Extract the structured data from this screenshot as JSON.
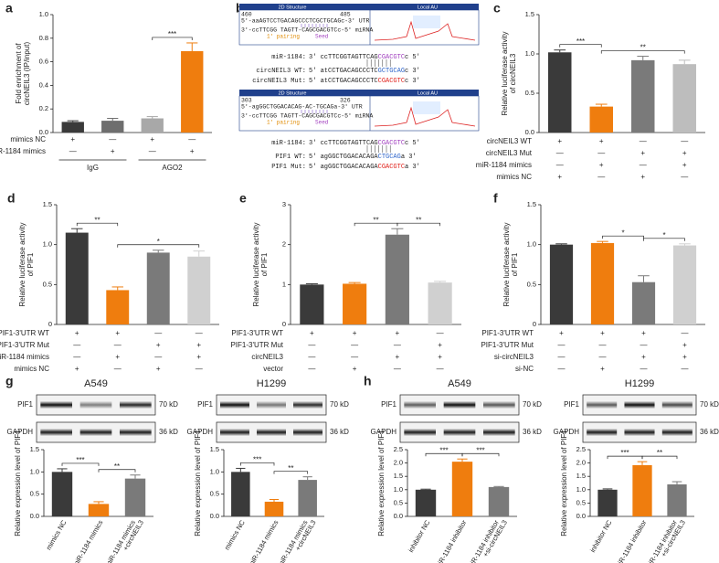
{
  "chart_data": [
    {
      "type": "bar",
      "panel": "a",
      "ylabel": [
        "Fold enrichment of",
        "circNEIL3 (IP/input)"
      ],
      "values": [
        0.09,
        0.1,
        0.12,
        0.69
      ],
      "errors": [
        0.01,
        0.02,
        0.015,
        0.07
      ],
      "colors": [
        "#3a3a3a",
        "#6e6e6e",
        "#a8a8a8",
        "#ef7d0e"
      ],
      "ylim": [
        0,
        1
      ],
      "yticks": [
        {
          "value": 0,
          "label": "0.0"
        },
        0.2,
        0.4,
        0.6,
        0.8,
        {
          "value": 1,
          "label": "1.0"
        }
      ],
      "conditions": [
        {
          "name": "mimics NC",
          "signs": [
            "+",
            "—",
            "+",
            "—"
          ]
        },
        {
          "name": "miR-1184 mimics",
          "signs": [
            "—",
            "+",
            "—",
            "+"
          ]
        }
      ],
      "groups": [
        {
          "name": "IgG",
          "from": 0,
          "to": 1
        },
        {
          "name": "AGO2",
          "from": 2,
          "to": 3
        }
      ],
      "significance": [
        {
          "from": 2,
          "to": 3,
          "label": "***"
        }
      ]
    },
    {
      "type": "bar",
      "panel": "c",
      "ylabel": [
        "Relative luciferase activity",
        "of circNEIL3"
      ],
      "values": [
        1.02,
        0.33,
        0.92,
        0.87
      ],
      "errors": [
        0.03,
        0.03,
        0.05,
        0.05
      ],
      "colors": [
        "#3a3a3a",
        "#ef7d0e",
        "#7a7a7a",
        "#bdbdbd"
      ],
      "ylim": [
        0,
        1.5
      ],
      "yticks": [
        {
          "value": 0,
          "label": "0.0"
        },
        0.5,
        {
          "value": 1,
          "label": "1.0"
        },
        1.5
      ],
      "conditions": [
        {
          "name": "circNEIL3 WT",
          "signs": [
            "+",
            "+",
            "—",
            "—"
          ]
        },
        {
          "name": "circNEIL3 Mut",
          "signs": [
            "—",
            "—",
            "+",
            "+"
          ]
        },
        {
          "name": "miR-1184 mimics",
          "signs": [
            "—",
            "+",
            "—",
            "+"
          ]
        },
        {
          "name": "mimics NC",
          "signs": [
            "+",
            "—",
            "+",
            "—"
          ]
        }
      ],
      "significance": [
        {
          "from": 0,
          "to": 1,
          "label": "***"
        },
        {
          "from": 1,
          "to": 3,
          "label": "**"
        }
      ]
    },
    {
      "type": "bar",
      "panel": "d",
      "ylabel": [
        "Relative luciferase activity",
        "of PIF1"
      ],
      "values": [
        1.15,
        0.43,
        0.9,
        0.85
      ],
      "errors": [
        0.05,
        0.04,
        0.03,
        0.07
      ],
      "colors": [
        "#3a3a3a",
        "#ef7d0e",
        "#7a7a7a",
        "#d0d0d0"
      ],
      "ylim": [
        0,
        1.5
      ],
      "yticks": [
        0,
        0.5,
        {
          "value": 1,
          "label": "1.0"
        },
        1.5
      ],
      "conditions": [
        {
          "name": "PIF1-3'UTR WT",
          "signs": [
            "+",
            "+",
            "—",
            "—"
          ]
        },
        {
          "name": "PIF1-3'UTR Mut",
          "signs": [
            "—",
            "—",
            "+",
            "+"
          ]
        },
        {
          "name": "miR-1184 mimics",
          "signs": [
            "—",
            "+",
            "—",
            "+"
          ]
        },
        {
          "name": "mimics NC",
          "signs": [
            "+",
            "—",
            "+",
            "—"
          ]
        }
      ],
      "significance": [
        {
          "from": 0,
          "to": 1,
          "label": "**"
        },
        {
          "from": 1,
          "to": 3,
          "label": "*"
        }
      ]
    },
    {
      "type": "bar",
      "panel": "e",
      "ylabel": [
        "Relative luciferase activity",
        "of PIF1"
      ],
      "values": [
        1.0,
        1.02,
        2.25,
        1.05
      ],
      "errors": [
        0.02,
        0.03,
        0.15,
        0.03
      ],
      "colors": [
        "#3a3a3a",
        "#ef7d0e",
        "#7a7a7a",
        "#d0d0d0"
      ],
      "ylim": [
        0,
        3
      ],
      "yticks": [
        0,
        1,
        2,
        3
      ],
      "conditions": [
        {
          "name": "PIF1-3'UTR WT",
          "signs": [
            "+",
            "+",
            "+",
            "—"
          ]
        },
        {
          "name": "PIF1-3'UTR Mut",
          "signs": [
            "—",
            "—",
            "—",
            "+"
          ]
        },
        {
          "name": "circNEIL3",
          "signs": [
            "—",
            "—",
            "+",
            "+"
          ]
        },
        {
          "name": "vector",
          "signs": [
            "—",
            "+",
            "—",
            "—"
          ]
        }
      ],
      "significance": [
        {
          "from": 1,
          "to": 2,
          "label": "**"
        },
        {
          "from": 2,
          "to": 3,
          "label": "**"
        }
      ]
    },
    {
      "type": "bar",
      "panel": "f",
      "ylabel": [
        "Relative luciferase activity",
        "of PIF1"
      ],
      "values": [
        1.0,
        1.02,
        0.53,
        0.99
      ],
      "errors": [
        0.01,
        0.02,
        0.08,
        0.02
      ],
      "colors": [
        "#3a3a3a",
        "#ef7d0e",
        "#7a7a7a",
        "#d0d0d0"
      ],
      "ylim": [
        0,
        1.5
      ],
      "yticks": [
        0,
        0.5,
        {
          "value": 1,
          "label": "1.0"
        },
        1.5
      ],
      "conditions": [
        {
          "name": "PIF1-3'UTR WT",
          "signs": [
            "+",
            "+",
            "+",
            "—"
          ]
        },
        {
          "name": "PIF1-3'UTR Mut",
          "signs": [
            "—",
            "—",
            "—",
            "+"
          ]
        },
        {
          "name": "si-circNEIL3",
          "signs": [
            "—",
            "—",
            "+",
            "+"
          ]
        },
        {
          "name": "si-NC",
          "signs": [
            "—",
            "+",
            "—",
            "—"
          ]
        }
      ],
      "significance": [
        {
          "from": 1,
          "to": 2,
          "label": "*"
        },
        {
          "from": 2,
          "to": 3,
          "label": "*"
        }
      ]
    },
    {
      "type": "bar",
      "panel": "g",
      "title": "A549",
      "blot_labels": [
        {
          "protein": "PIF1",
          "size": "70 kD"
        },
        {
          "protein": "GAPDH",
          "size": "36 kD"
        }
      ],
      "ylabel": [
        "Relative expression level of PIF1"
      ],
      "categories": [
        [
          "mimics NC"
        ],
        [
          "miR-1184 mimics"
        ],
        [
          "miR-1184 mimics",
          "+circNEIL3"
        ]
      ],
      "values": [
        1.0,
        0.28,
        0.85
      ],
      "errors": [
        0.07,
        0.05,
        0.08
      ],
      "colors": [
        "#3a3a3a",
        "#ef7d0e",
        "#7a7a7a"
      ],
      "ylim": [
        0,
        1.5
      ],
      "yticks": [
        {
          "value": 0,
          "label": "0.0"
        },
        0.5,
        {
          "value": 1,
          "label": "1.0"
        },
        1.5
      ],
      "significance": [
        {
          "from": 0,
          "to": 1,
          "label": "***"
        },
        {
          "from": 1,
          "to": 2,
          "label": "**"
        }
      ]
    },
    {
      "type": "bar",
      "title": "H1299",
      "blot_labels": [
        {
          "protein": "PIF1",
          "size": "70 kD"
        },
        {
          "protein": "GAPDH",
          "size": "36 kD"
        }
      ],
      "ylabel": [
        "Relative expression level of PIF1"
      ],
      "categories": [
        [
          "mimics NC"
        ],
        [
          "miR-1184 mimics"
        ],
        [
          "miR-1184 mimics",
          "+circNEIL3"
        ]
      ],
      "values": [
        1.0,
        0.33,
        0.82
      ],
      "errors": [
        0.08,
        0.05,
        0.07
      ],
      "colors": [
        "#3a3a3a",
        "#ef7d0e",
        "#7a7a7a"
      ],
      "ylim": [
        0,
        1.5
      ],
      "yticks": [
        {
          "value": 0,
          "label": "0.0"
        },
        0.5,
        {
          "value": 1,
          "label": "1.0"
        },
        1.5
      ],
      "significance": [
        {
          "from": 0,
          "to": 1,
          "label": "***"
        },
        {
          "from": 1,
          "to": 2,
          "label": "**"
        }
      ]
    },
    {
      "type": "bar",
      "panel": "h",
      "title": "A549",
      "blot_labels": [
        {
          "protein": "PIF1",
          "size": "70 kD"
        },
        {
          "protein": "GAPDH",
          "size": "36 kD"
        }
      ],
      "ylabel": [
        "Relative expression level of PIF1"
      ],
      "categories": [
        [
          "inhibitor NC"
        ],
        [
          "miR-1184 inhibitor"
        ],
        [
          "miR-1184 inhibitor",
          "+si-circNEIL3"
        ]
      ],
      "values": [
        1.0,
        2.05,
        1.1
      ],
      "errors": [
        0.02,
        0.1,
        0.02
      ],
      "colors": [
        "#3a3a3a",
        "#ef7d0e",
        "#7a7a7a"
      ],
      "ylim": [
        0,
        2.5
      ],
      "yticks": [
        {
          "value": 0,
          "label": "0.0"
        },
        0.5,
        {
          "value": 1,
          "label": "1.0"
        },
        1.5,
        {
          "value": 2,
          "label": "2.0"
        },
        2.5
      ],
      "significance": [
        {
          "from": 0,
          "to": 1,
          "label": "***"
        },
        {
          "from": 1,
          "to": 2,
          "label": "***"
        }
      ]
    },
    {
      "type": "bar",
      "title": "H1299",
      "blot_labels": [
        {
          "protein": "PIF1",
          "size": "70 kD"
        },
        {
          "protein": "GAPDH",
          "size": "36 kD"
        }
      ],
      "ylabel": [
        "Relative expression level of PIF1"
      ],
      "categories": [
        [
          "inhibitor NC"
        ],
        [
          "miR-1184 inhibitor"
        ],
        [
          "miR-1184 inhibitor",
          "+si-circNEIL3"
        ]
      ],
      "values": [
        1.0,
        1.92,
        1.2
      ],
      "errors": [
        0.03,
        0.13,
        0.1
      ],
      "colors": [
        "#3a3a3a",
        "#ef7d0e",
        "#7a7a7a"
      ],
      "ylim": [
        0,
        2.5
      ],
      "yticks": [
        {
          "value": 0,
          "label": "0.0"
        },
        0.5,
        {
          "value": 1,
          "label": "1.0"
        },
        1.5,
        {
          "value": 2,
          "label": "2.0"
        },
        2.5
      ],
      "significance": [
        {
          "from": 0,
          "to": 1,
          "label": "***"
        },
        {
          "from": 1,
          "to": 2,
          "label": "**"
        }
      ]
    }
  ],
  "diagram": {
    "panel": "b",
    "blocks": [
      {
        "header": [
          "2D Structure",
          "Local AU"
        ],
        "start": "460",
        "end": "485",
        "utr": "5'-aaAGTCCTGACAGCCCTCGCTGCAGc-3' UTR",
        "mirna": "3'-ccTTCGG TAGTT-CAGCGACGTCc-5' miRNA",
        "pairing": "1' pairing",
        "seed": "Seed",
        "alignment": [
          {
            "name": "miR-1184:",
            "color": "#a13fbf",
            "parts": [
              "3' ccTTCGGTAGTTCAG",
              "CGACGTC",
              "c 5'"
            ]
          },
          {
            "name": "circNEIL3 WT:",
            "color": "#2a62c9",
            "parts": [
              "5' atCCTGACAGCCCTC",
              "GCTGCAG",
              "c 3'"
            ]
          },
          {
            "name": "circNEIL3 Mut:",
            "color": "#e0201a",
            "parts": [
              "5' atCCTGACAGCCCTC",
              "CGACGTC",
              "c 3'"
            ]
          }
        ]
      },
      {
        "header": [
          "2D Structure",
          "Local AU"
        ],
        "start": "303",
        "end": "326",
        "utr": "5'-agGGCTGGACACAG-AC-TGCAGa-3' UTR",
        "mirna": "3'-ccTTCGG TAGTT-CAGCGACGTCc-5' miRNA",
        "pairing": "1' pairing",
        "seed": "Seed",
        "alignment": [
          {
            "name": "miR-1184:",
            "color": "#a13fbf",
            "parts": [
              "3' ccTTCGGTAGTTCAG",
              "CGACGTC",
              "c 5'"
            ]
          },
          {
            "name": "PIF1 WT:",
            "color": "#2a62c9",
            "parts": [
              "5' agGGCTGGACACAGA",
              "CTGCAG",
              "a 3'"
            ]
          },
          {
            "name": "PIF1 Mut:",
            "color": "#e0201a",
            "parts": [
              "5' agGGCTGGACACAGA",
              "CGACGTC",
              "a 3'"
            ]
          }
        ]
      }
    ]
  }
}
